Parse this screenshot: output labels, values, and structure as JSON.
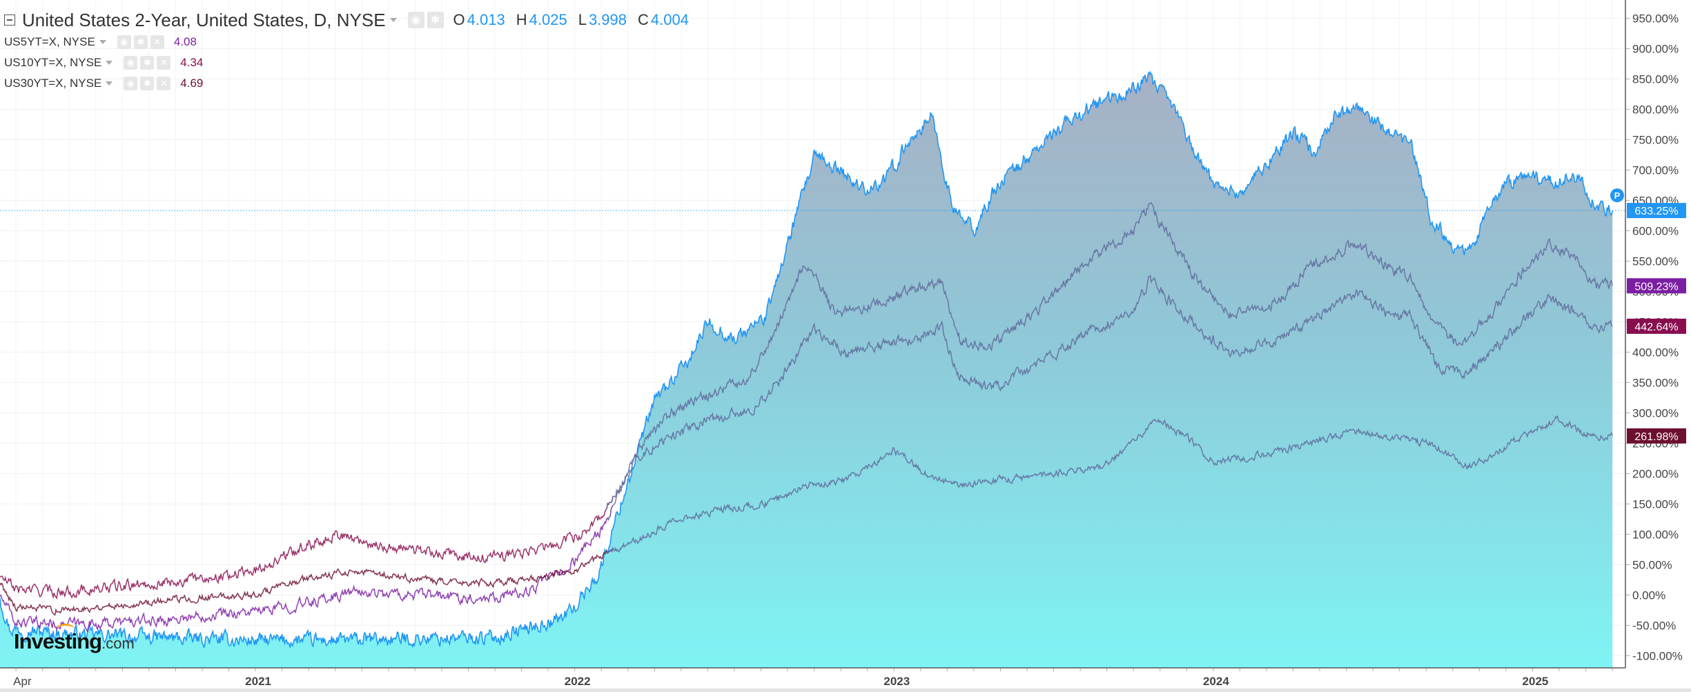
{
  "legend": {
    "main": {
      "title": "United States 2-Year, United States, D, NYSE",
      "o_label": "O",
      "o_value": "4.013",
      "h_label": "H",
      "h_value": "4.025",
      "l_label": "L",
      "l_value": "3.998",
      "c_label": "C",
      "c_value": "4.004",
      "color": "#2196f3"
    },
    "series": [
      {
        "name": "US5YT=X, NYSE",
        "value": "4.08",
        "color": "#7b1fa2"
      },
      {
        "name": "US10YT=X, NYSE",
        "value": "4.34",
        "color": "#880e4f"
      },
      {
        "name": "US30YT=X, NYSE",
        "value": "4.69",
        "color": "#6d0f2f"
      }
    ]
  },
  "logo": {
    "name": "Investing",
    "suffix": ".com"
  },
  "price_badge": "P",
  "chart_data": {
    "type": "area",
    "xlabel": "",
    "ylabel": "",
    "y_unit": "%",
    "ylim": [
      -120,
      980
    ],
    "y_ticks": [
      "950.00%",
      "900.00%",
      "850.00%",
      "800.00%",
      "750.00%",
      "700.00%",
      "650.00%",
      "600.00%",
      "550.00%",
      "500.00%",
      "450.00%",
      "400.00%",
      "350.00%",
      "300.00%",
      "250.00%",
      "200.00%",
      "150.00%",
      "100.00%",
      "50.00%",
      "0.00%",
      "-50.00%",
      "-100.00%"
    ],
    "y_tick_values": [
      950,
      900,
      850,
      800,
      750,
      700,
      650,
      600,
      550,
      500,
      450,
      400,
      350,
      300,
      250,
      200,
      150,
      100,
      50,
      0,
      -50,
      -100
    ],
    "x_tick_labels": [
      "Apr",
      "2021",
      "2022",
      "2023",
      "2024",
      "2025"
    ],
    "x_tick_positions": [
      2020.25,
      2021.0,
      2022.0,
      2023.0,
      2024.0,
      2025.0
    ],
    "xlim": [
      2020.2,
      2025.28
    ],
    "grid": true,
    "last_value_labels": [
      {
        "label": "633.25%",
        "value": 633.25,
        "color": "#2196f3"
      },
      {
        "label": "509.23%",
        "value": 509.23,
        "color": "#7b1fa2"
      },
      {
        "label": "442.64%",
        "value": 442.64,
        "color": "#880e4f"
      },
      {
        "label": "261.98%",
        "value": 261.98,
        "color": "#6d0f2f"
      }
    ],
    "series": [
      {
        "name": "United States 2-Year, United States, D, NYSE",
        "style": "area",
        "color": "#2196f3",
        "noise": 12,
        "points": [
          [
            2020.2,
            -5
          ],
          [
            2020.23,
            -55
          ],
          [
            2020.35,
            -62
          ],
          [
            2020.6,
            -68
          ],
          [
            2020.8,
            -72
          ],
          [
            2021.0,
            -75
          ],
          [
            2021.25,
            -75
          ],
          [
            2021.5,
            -72
          ],
          [
            2021.75,
            -70
          ],
          [
            2021.95,
            -40
          ],
          [
            2022.0,
            -20
          ],
          [
            2022.08,
            40
          ],
          [
            2022.15,
            160
          ],
          [
            2022.25,
            320
          ],
          [
            2022.35,
            380
          ],
          [
            2022.42,
            450
          ],
          [
            2022.5,
            420
          ],
          [
            2022.6,
            460
          ],
          [
            2022.68,
            600
          ],
          [
            2022.75,
            720
          ],
          [
            2022.83,
            700
          ],
          [
            2022.9,
            670
          ],
          [
            2022.97,
            680
          ],
          [
            2023.05,
            750
          ],
          [
            2023.12,
            790
          ],
          [
            2023.18,
            640
          ],
          [
            2023.25,
            600
          ],
          [
            2023.33,
            680
          ],
          [
            2023.42,
            720
          ],
          [
            2023.5,
            760
          ],
          [
            2023.6,
            800
          ],
          [
            2023.7,
            820
          ],
          [
            2023.8,
            850
          ],
          [
            2023.88,
            800
          ],
          [
            2023.95,
            720
          ],
          [
            2024.0,
            680
          ],
          [
            2024.08,
            660
          ],
          [
            2024.15,
            700
          ],
          [
            2024.25,
            760
          ],
          [
            2024.32,
            730
          ],
          [
            2024.38,
            790
          ],
          [
            2024.45,
            800
          ],
          [
            2024.55,
            760
          ],
          [
            2024.62,
            740
          ],
          [
            2024.68,
            620
          ],
          [
            2024.75,
            580
          ],
          [
            2024.8,
            560
          ],
          [
            2024.85,
            620
          ],
          [
            2024.92,
            680
          ],
          [
            2025.0,
            690
          ],
          [
            2025.08,
            680
          ],
          [
            2025.14,
            690
          ],
          [
            2025.2,
            640
          ],
          [
            2025.25,
            633.25
          ]
        ]
      },
      {
        "name": "US5YT=X, NYSE",
        "style": "line",
        "color": "#7b1fa2",
        "noise": 9,
        "points": [
          [
            2020.2,
            -2
          ],
          [
            2020.25,
            -45
          ],
          [
            2020.45,
            -48
          ],
          [
            2020.7,
            -42
          ],
          [
            2020.9,
            -30
          ],
          [
            2021.0,
            -28
          ],
          [
            2021.15,
            -15
          ],
          [
            2021.3,
            5
          ],
          [
            2021.5,
            0
          ],
          [
            2021.7,
            -5
          ],
          [
            2021.85,
            5
          ],
          [
            2021.98,
            45
          ],
          [
            2022.1,
            120
          ],
          [
            2022.2,
            240
          ],
          [
            2022.3,
            300
          ],
          [
            2022.42,
            330
          ],
          [
            2022.55,
            360
          ],
          [
            2022.65,
            460
          ],
          [
            2022.72,
            550
          ],
          [
            2022.82,
            460
          ],
          [
            2022.95,
            480
          ],
          [
            2023.05,
            500
          ],
          [
            2023.15,
            520
          ],
          [
            2023.2,
            420
          ],
          [
            2023.3,
            410
          ],
          [
            2023.45,
            470
          ],
          [
            2023.6,
            550
          ],
          [
            2023.75,
            600
          ],
          [
            2023.8,
            640
          ],
          [
            2023.95,
            520
          ],
          [
            2024.05,
            460
          ],
          [
            2024.2,
            480
          ],
          [
            2024.3,
            540
          ],
          [
            2024.45,
            580
          ],
          [
            2024.55,
            540
          ],
          [
            2024.62,
            520
          ],
          [
            2024.7,
            440
          ],
          [
            2024.78,
            410
          ],
          [
            2024.85,
            450
          ],
          [
            2024.95,
            520
          ],
          [
            2025.05,
            580
          ],
          [
            2025.12,
            560
          ],
          [
            2025.2,
            510
          ],
          [
            2025.25,
            509.23
          ]
        ]
      },
      {
        "name": "US10YT=X, NYSE",
        "style": "line",
        "color": "#880e4f",
        "noise": 9,
        "points": [
          [
            2020.2,
            30
          ],
          [
            2020.25,
            10
          ],
          [
            2020.4,
            5
          ],
          [
            2020.6,
            15
          ],
          [
            2020.8,
            25
          ],
          [
            2021.0,
            40
          ],
          [
            2021.15,
            80
          ],
          [
            2021.25,
            100
          ],
          [
            2021.4,
            80
          ],
          [
            2021.55,
            70
          ],
          [
            2021.7,
            60
          ],
          [
            2021.85,
            70
          ],
          [
            2021.98,
            90
          ],
          [
            2022.05,
            110
          ],
          [
            2022.12,
            160
          ],
          [
            2022.2,
            230
          ],
          [
            2022.3,
            260
          ],
          [
            2022.42,
            290
          ],
          [
            2022.55,
            300
          ],
          [
            2022.65,
            360
          ],
          [
            2022.75,
            440
          ],
          [
            2022.85,
            400
          ],
          [
            2022.95,
            410
          ],
          [
            2023.05,
            420
          ],
          [
            2023.15,
            440
          ],
          [
            2023.2,
            360
          ],
          [
            2023.3,
            340
          ],
          [
            2023.45,
            380
          ],
          [
            2023.6,
            430
          ],
          [
            2023.75,
            470
          ],
          [
            2023.8,
            520
          ],
          [
            2023.95,
            440
          ],
          [
            2024.05,
            400
          ],
          [
            2024.2,
            420
          ],
          [
            2024.3,
            450
          ],
          [
            2024.45,
            500
          ],
          [
            2024.55,
            460
          ],
          [
            2024.62,
            460
          ],
          [
            2024.7,
            380
          ],
          [
            2024.78,
            360
          ],
          [
            2024.85,
            390
          ],
          [
            2024.95,
            440
          ],
          [
            2025.05,
            490
          ],
          [
            2025.12,
            470
          ],
          [
            2025.2,
            440
          ],
          [
            2025.25,
            442.64
          ]
        ]
      },
      {
        "name": "US30YT=X, NYSE",
        "style": "line",
        "color": "#6d0f2f",
        "noise": 6,
        "points": [
          [
            2020.2,
            20
          ],
          [
            2020.25,
            -20
          ],
          [
            2020.4,
            -25
          ],
          [
            2020.6,
            -15
          ],
          [
            2020.8,
            -5
          ],
          [
            2021.0,
            0
          ],
          [
            2021.15,
            25
          ],
          [
            2021.3,
            40
          ],
          [
            2021.45,
            30
          ],
          [
            2021.6,
            20
          ],
          [
            2021.75,
            20
          ],
          [
            2021.9,
            30
          ],
          [
            2022.0,
            40
          ],
          [
            2022.1,
            70
          ],
          [
            2022.2,
            90
          ],
          [
            2022.3,
            120
          ],
          [
            2022.45,
            140
          ],
          [
            2022.6,
            150
          ],
          [
            2022.72,
            180
          ],
          [
            2022.85,
            190
          ],
          [
            2022.95,
            220
          ],
          [
            2023.0,
            240
          ],
          [
            2023.1,
            200
          ],
          [
            2023.2,
            180
          ],
          [
            2023.35,
            190
          ],
          [
            2023.5,
            200
          ],
          [
            2023.65,
            210
          ],
          [
            2023.75,
            250
          ],
          [
            2023.82,
            290
          ],
          [
            2023.92,
            260
          ],
          [
            2024.0,
            220
          ],
          [
            2024.15,
            230
          ],
          [
            2024.3,
            250
          ],
          [
            2024.45,
            270
          ],
          [
            2024.55,
            260
          ],
          [
            2024.68,
            250
          ],
          [
            2024.8,
            210
          ],
          [
            2024.9,
            240
          ],
          [
            2025.0,
            270
          ],
          [
            2025.08,
            290
          ],
          [
            2025.15,
            270
          ],
          [
            2025.2,
            260
          ],
          [
            2025.25,
            261.98
          ]
        ]
      }
    ]
  }
}
